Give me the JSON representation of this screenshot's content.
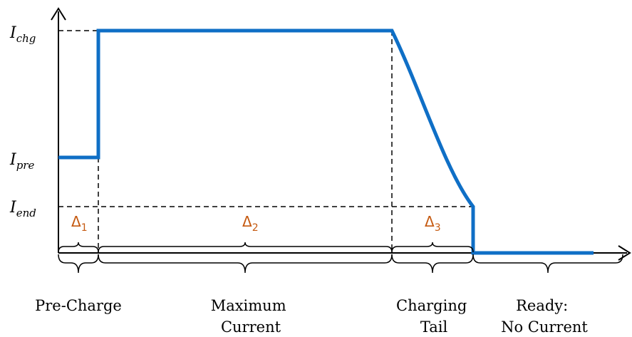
{
  "colors": {
    "curve": "#0f6fc6",
    "delta_label": "#c55a11",
    "axis": "#000000",
    "guide": "#000000"
  },
  "axis_labels": {
    "i_chg": {
      "symbol": "I",
      "sub": "chg"
    },
    "i_pre": {
      "symbol": "I",
      "sub": "pre"
    },
    "i_end": {
      "symbol": "I",
      "sub": "end"
    }
  },
  "intervals": [
    {
      "symbol": "Δ",
      "sub": "1"
    },
    {
      "symbol": "Δ",
      "sub": "2"
    },
    {
      "symbol": "Δ",
      "sub": "3"
    }
  ],
  "phases": [
    {
      "lines": [
        "Pre-Charge"
      ]
    },
    {
      "lines": [
        "Maximum",
        "Current"
      ]
    },
    {
      "lines": [
        "Charging",
        "Tail"
      ]
    },
    {
      "lines": [
        "Ready:",
        "No Current"
      ]
    }
  ]
}
